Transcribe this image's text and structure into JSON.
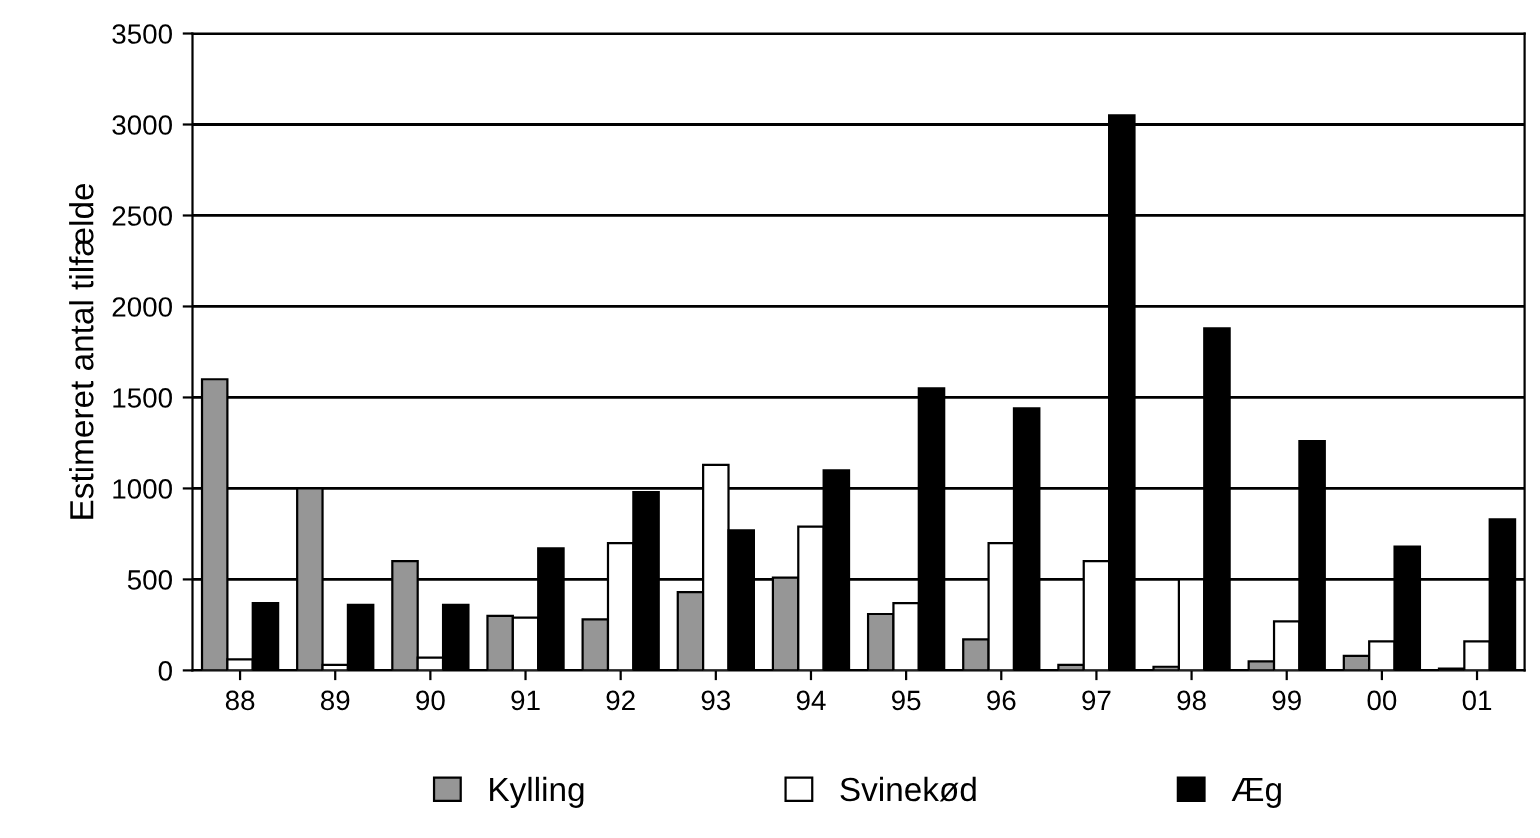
{
  "chart_data": {
    "type": "bar",
    "ylabel": "Estimeret antal tilfælde",
    "categories": [
      "88",
      "89",
      "90",
      "91",
      "92",
      "93",
      "94",
      "95",
      "96",
      "97",
      "98",
      "99",
      "00",
      "01"
    ],
    "series": [
      {
        "name": "Kylling",
        "color": "#969696",
        "values": [
          1600,
          1000,
          600,
          300,
          280,
          430,
          510,
          310,
          170,
          30,
          20,
          50,
          80,
          10
        ]
      },
      {
        "name": "Svinekød",
        "color": "#ffffff",
        "values": [
          60,
          30,
          70,
          290,
          700,
          1130,
          790,
          370,
          700,
          600,
          500,
          270,
          160,
          160
        ]
      },
      {
        "name": "Æg",
        "color": "#000000",
        "values": [
          370,
          360,
          360,
          670,
          980,
          770,
          1100,
          1550,
          1440,
          3050,
          1880,
          1260,
          680,
          830
        ]
      }
    ],
    "ylim": [
      0,
      3500
    ],
    "yticks": [
      0,
      500,
      1000,
      1500,
      2000,
      2500,
      3000,
      3500
    ],
    "grid": "y",
    "legend": "bottom"
  }
}
